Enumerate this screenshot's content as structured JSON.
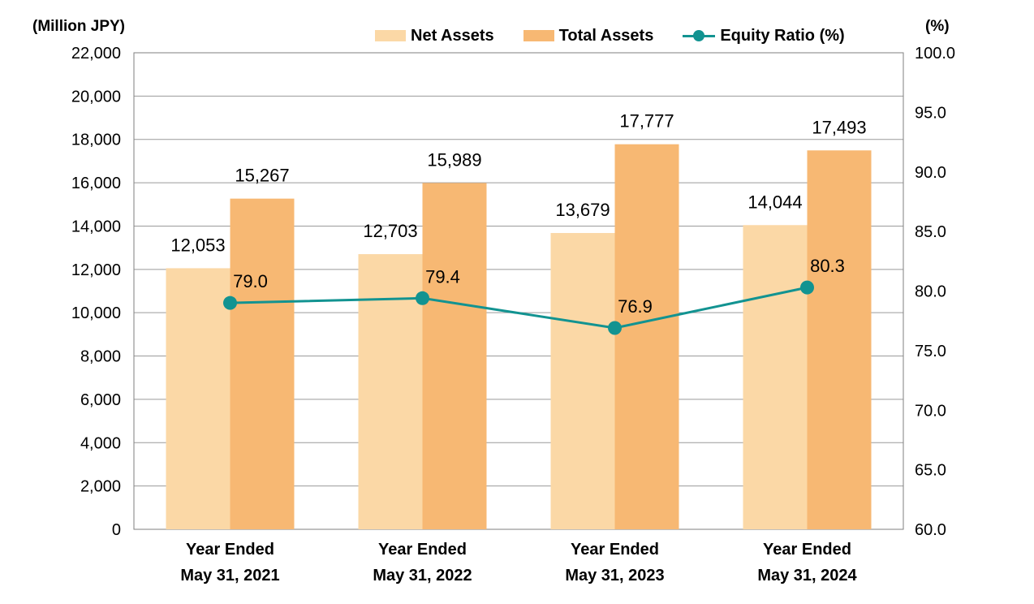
{
  "chart_data": {
    "type": "bar",
    "categories": [
      [
        "Year Ended",
        "May 31, 2021"
      ],
      [
        "Year Ended",
        "May 31, 2022"
      ],
      [
        "Year Ended",
        "May 31, 2023"
      ],
      [
        "Year Ended",
        "May 31, 2024"
      ]
    ],
    "series": [
      {
        "name": "Net Assets",
        "kind": "bar",
        "axis": "left",
        "color": "#fbd8a6",
        "values": [
          12053,
          12703,
          13679,
          14044
        ],
        "labels": [
          "12,053",
          "12,703",
          "13,679",
          "14,044"
        ]
      },
      {
        "name": "Total Assets",
        "kind": "bar",
        "axis": "left",
        "color": "#f7b873",
        "values": [
          15267,
          15989,
          17777,
          17493
        ],
        "labels": [
          "15,267",
          "15,989",
          "17,777",
          "17,493"
        ]
      },
      {
        "name": "Equity Ratio (%)",
        "kind": "line",
        "axis": "right",
        "color": "#129391",
        "values": [
          79.0,
          79.4,
          76.9,
          80.3
        ],
        "labels": [
          "79.0",
          "79.4",
          "76.9",
          "80.3"
        ]
      }
    ],
    "y_left": {
      "unit": "(Million JPY)",
      "ylim": [
        0,
        22000
      ],
      "ticks": [
        "0",
        "2,000",
        "4,000",
        "6,000",
        "8,000",
        "10,000",
        "12,000",
        "14,000",
        "16,000",
        "18,000",
        "20,000",
        "22,000"
      ]
    },
    "y_right": {
      "unit": "(%)",
      "ylim": [
        60,
        100
      ],
      "ticks": [
        "60.0",
        "65.0",
        "70.0",
        "75.0",
        "80.0",
        "85.0",
        "90.0",
        "95.0",
        "100.0"
      ]
    },
    "grid": true,
    "legend_position": "top-right"
  }
}
